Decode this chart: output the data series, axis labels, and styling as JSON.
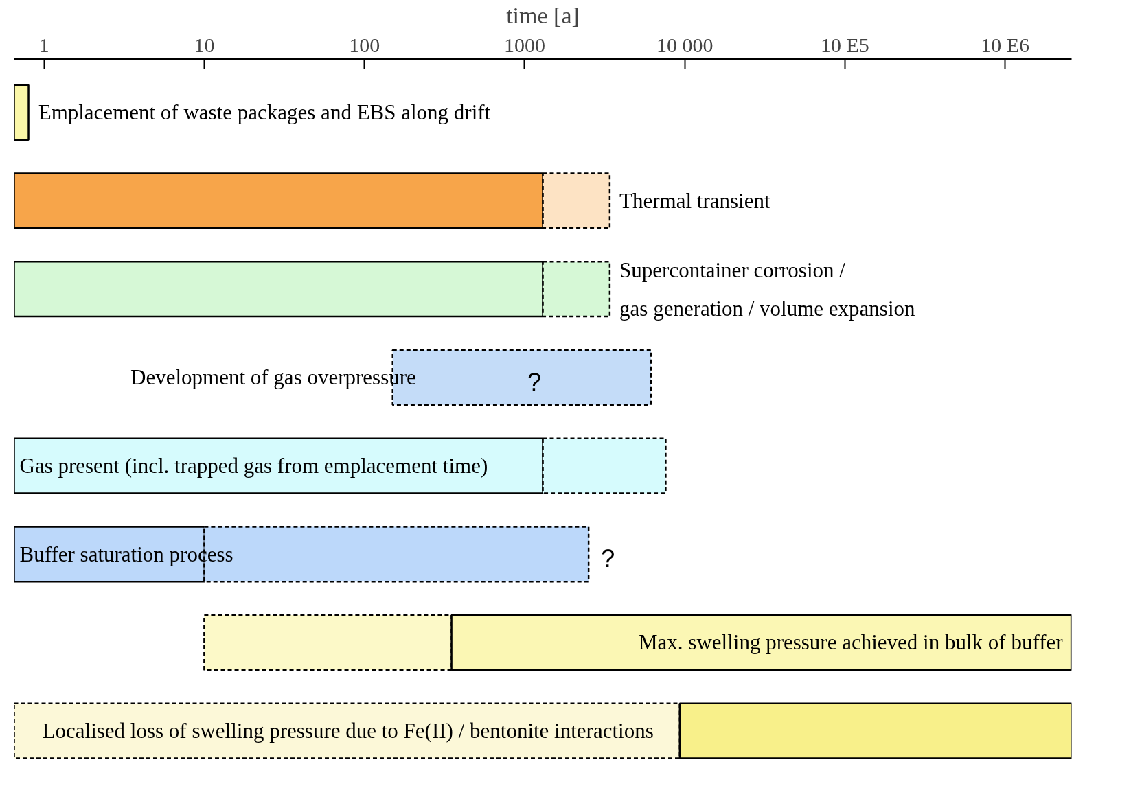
{
  "chart_data": {
    "type": "bar",
    "orientation": "horizontal",
    "log": "x",
    "xlabel": "time [a]",
    "categories": [
      "Emplacement of waste packages and EBS along drift",
      "Thermal transient",
      "Supercontainer corrosion /\ngas generation / volume expansion",
      "Development of gas overpressure",
      "Gas present (incl. trapped gas from emplacement time)",
      "Buffer saturation process",
      "Max. swelling pressure achieved in bulk of buffer",
      "Localised loss of swelling pressure due to Fe(II) / bentonite interactions"
    ],
    "series": [
      {
        "base": [
          null,
          null,
          null,
          null,
          null,
          null,
          10,
          0.65
        ],
        "values": [
          null,
          null,
          null,
          null,
          null,
          null,
          340,
          9300
        ],
        "line_style": "dashed",
        "colors": [
          "#fbf7a8",
          "#fbf7a8",
          "#fbf7a8",
          "#e3eefc",
          "#e3eefc",
          "#e3eefc",
          "#fcf9c8",
          "#fcf8d8"
        ]
      },
      {
        "base": [
          0.65,
          0.65,
          0.65,
          null,
          0.65,
          0.65,
          350,
          9300
        ],
        "values": [
          0.15,
          1300,
          1300,
          null,
          1300,
          9.4,
          2590000,
          2590000
        ],
        "line_style": "solid",
        "colors": [
          "#fbf7a8",
          "#f7a54a",
          "#d6f8d6",
          "#c4dcf8",
          "#d6fbfd",
          "#bcd8fa",
          "#fbf7b4",
          "#f8f08a"
        ]
      },
      {
        "base": [
          null,
          1300,
          1300,
          150,
          1300,
          10,
          null,
          null
        ],
        "values": [
          null,
          2100,
          2100,
          6000,
          6300,
          2500,
          null,
          null
        ],
        "line_style": "dashed",
        "colors": [
          "#fbf7a8",
          "#fde3c4",
          "#d6f8d6",
          "#c4dcf8",
          "#d6fbfd",
          "#bcd8fa",
          "#fbf7b4",
          "#f8f08a"
        ]
      }
    ],
    "xlim": [
      0.65,
      2600000
    ],
    "xticks": [
      1,
      10,
      100,
      1000,
      {
        "value": 10000,
        "label": "10 000"
      },
      {
        "value": 100000,
        "label": "10 E5"
      },
      {
        "value": 1000000,
        "label": "10 E6"
      }
    ],
    "tick_labels": "x",
    "grid": false,
    "annotations": [
      "?",
      {
        "text": "?",
        "x": 2510,
        "y": "Buffer saturation process"
      }
    ]
  }
}
